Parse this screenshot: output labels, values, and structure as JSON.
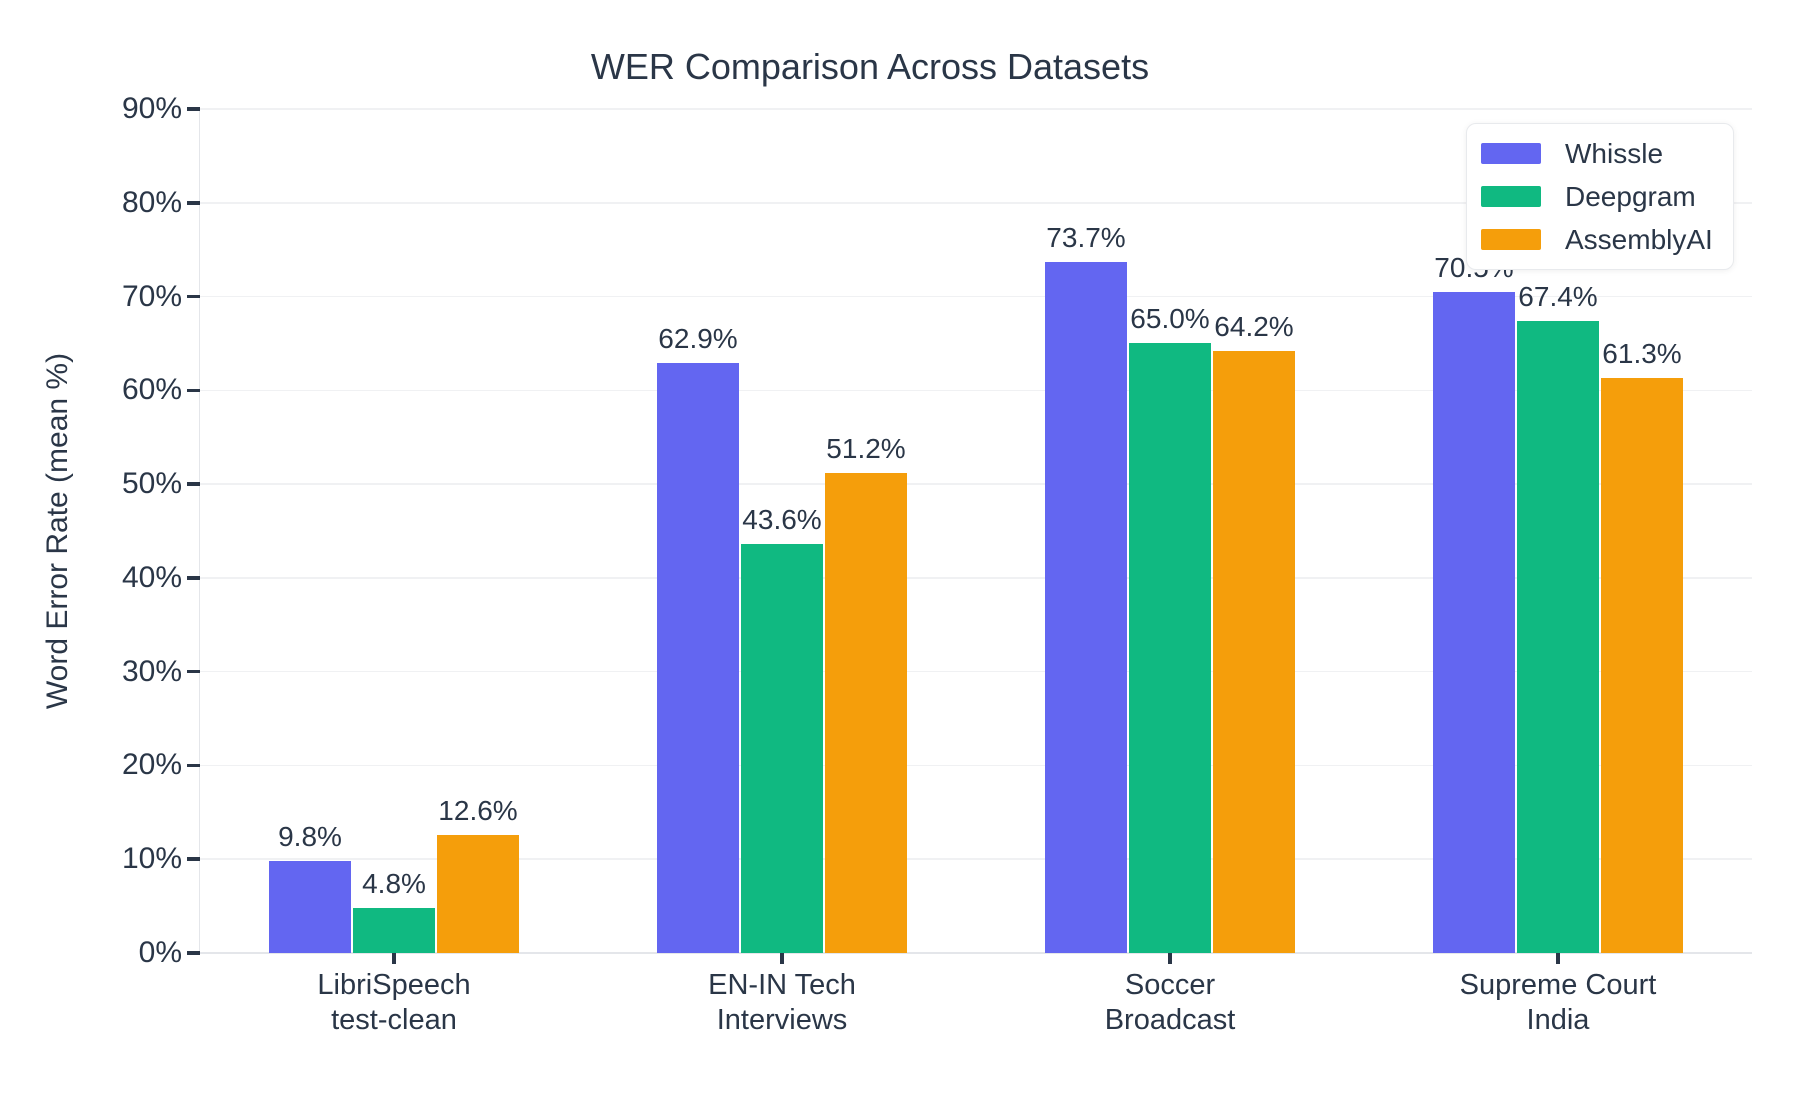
{
  "chart_data": {
    "type": "bar",
    "title": "WER Comparison Across Datasets",
    "xlabel": "",
    "ylabel": "Word Error Rate (mean %)",
    "ylim": [
      0,
      90
    ],
    "ytick_step": 10,
    "ytick_labels": [
      "0%",
      "10%",
      "20%",
      "30%",
      "40%",
      "50%",
      "60%",
      "70%",
      "80%",
      "90%"
    ],
    "grid": true,
    "legend_position": "upper right",
    "categories": [
      "LibriSpeech\ntest-clean",
      "EN-IN Tech\nInterviews",
      "Soccer\nBroadcast",
      "Supreme Court\nIndia"
    ],
    "series": [
      {
        "name": "Whissle",
        "color": "#6366F1",
        "values": [
          9.8,
          62.9,
          73.7,
          70.5
        ],
        "value_labels": [
          "9.8%",
          "62.9%",
          "73.7%",
          "70.5%"
        ]
      },
      {
        "name": "Deepgram",
        "color": "#10B981",
        "values": [
          4.8,
          43.6,
          65.0,
          67.4
        ],
        "value_labels": [
          "4.8%",
          "43.6%",
          "65.0%",
          "67.4%"
        ]
      },
      {
        "name": "AssemblyAI",
        "color": "#F59E0B",
        "values": [
          12.6,
          51.2,
          64.2,
          61.3
        ],
        "value_labels": [
          "12.6%",
          "51.2%",
          "64.2%",
          "61.3%"
        ]
      }
    ],
    "style": {
      "text_color": "#2A3647",
      "grid_color": "#F0F1F3",
      "axis_color": "#E4E6EA",
      "background": "#FFFFFF",
      "legend_border": "#E8EAED"
    }
  }
}
